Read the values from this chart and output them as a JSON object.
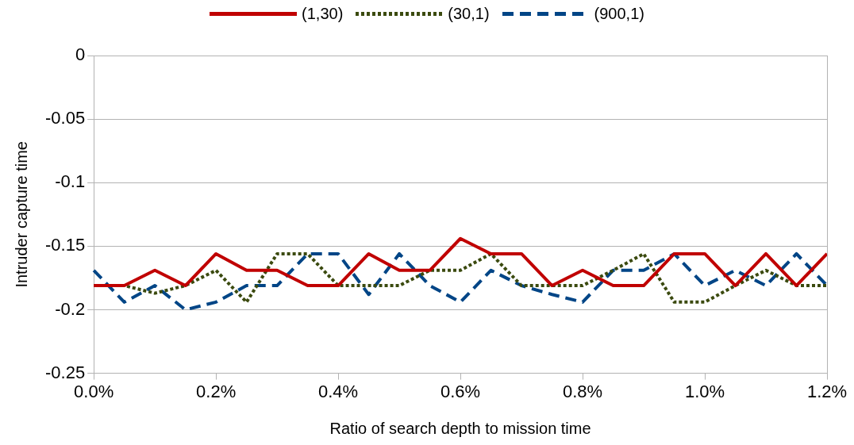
{
  "chart_data": {
    "type": "line",
    "xlabel": "Ratio of search depth to mission time",
    "ylabel": "Intruder capture time",
    "x": [
      0,
      0.05,
      0.1,
      0.15,
      0.2,
      0.25,
      0.3,
      0.35,
      0.4,
      0.45,
      0.5,
      0.55,
      0.6,
      0.65,
      0.7,
      0.75,
      0.8,
      0.85,
      0.9,
      0.95,
      1.0,
      1.05,
      1.1,
      1.15,
      1.2
    ],
    "series": [
      {
        "name": "(1,30)",
        "color": "#c00000",
        "line_style": "solid",
        "values": [
          -0.181,
          -0.181,
          -0.169,
          -0.181,
          -0.156,
          -0.169,
          -0.169,
          -0.181,
          -0.181,
          -0.156,
          -0.169,
          -0.169,
          -0.144,
          -0.156,
          -0.156,
          -0.181,
          -0.169,
          -0.181,
          -0.181,
          -0.156,
          -0.156,
          -0.181,
          -0.156,
          -0.181,
          -0.156
        ]
      },
      {
        "name": "(30,1)",
        "color": "#3b4a0f",
        "line_style": "dotted",
        "values": [
          -0.181,
          -0.181,
          -0.187,
          -0.181,
          -0.169,
          -0.194,
          -0.156,
          -0.156,
          -0.181,
          -0.181,
          -0.181,
          -0.169,
          -0.169,
          -0.156,
          -0.181,
          -0.181,
          -0.181,
          -0.169,
          -0.156,
          -0.194,
          -0.194,
          -0.181,
          -0.169,
          -0.181,
          -0.181
        ]
      },
      {
        "name": "(900,1)",
        "color": "#004586",
        "line_style": "dashed",
        "values": [
          -0.169,
          -0.194,
          -0.181,
          -0.2,
          -0.194,
          -0.181,
          -0.181,
          -0.156,
          -0.156,
          -0.188,
          -0.156,
          -0.181,
          -0.194,
          -0.169,
          -0.181,
          -0.188,
          -0.194,
          -0.169,
          -0.169,
          -0.156,
          -0.181,
          -0.169,
          -0.181,
          -0.156,
          -0.181
        ]
      }
    ],
    "xlim": [
      0,
      1.2
    ],
    "xticks": [
      {
        "value": 0,
        "label": "0.0%"
      },
      {
        "value": 0.2,
        "label": "0.2%"
      },
      {
        "value": 0.4,
        "label": "0.4%"
      },
      {
        "value": 0.6,
        "label": "0.6%"
      },
      {
        "value": 0.8,
        "label": "0.8%"
      },
      {
        "value": 1.0,
        "label": "1.0%"
      },
      {
        "value": 1.2,
        "label": "1.2%"
      }
    ],
    "ylim": [
      -0.25,
      0
    ],
    "yticks": [
      -0.25,
      -0.2,
      -0.15,
      -0.1,
      -0.05,
      0
    ],
    "grid": "y",
    "legend": "top",
    "marker": "none"
  }
}
